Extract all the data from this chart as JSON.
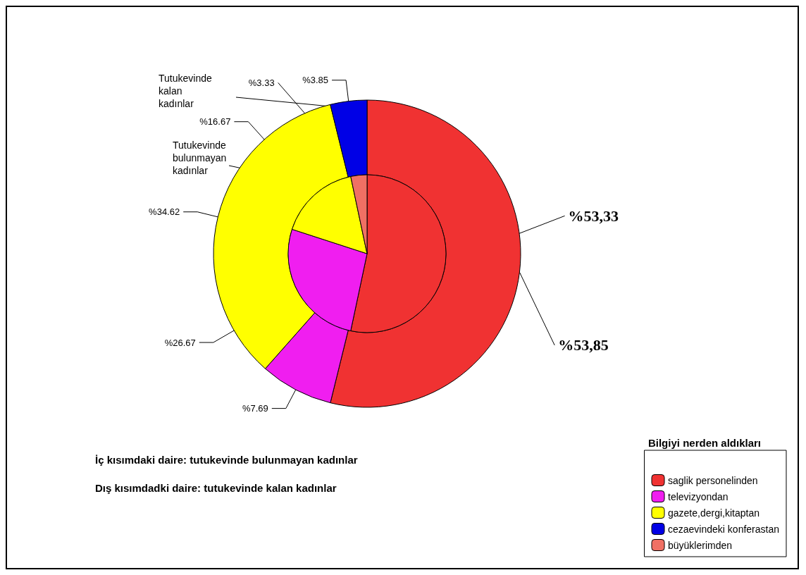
{
  "chart_data": {
    "type": "pie",
    "legend_title": "Bilgiyi nerden aldıkları",
    "legend": "bottom right",
    "categories": [
      "saglik personelinden",
      "televizyondan",
      "gazete,dergi,kitaptan",
      "cezaevindeki konferastan",
      "büyüklerimden"
    ],
    "colors": [
      "#f03232",
      "#f01ef0",
      "#ffff00",
      "#0000e6",
      "#f07064"
    ],
    "series": [
      {
        "name": "Tutukevinde kalan kadınlar",
        "values": [
          53.85,
          7.69,
          34.62,
          3.85,
          null
        ],
        "value_labels": [
          "%53,85",
          "%7.69",
          "%34.62",
          "%3.85",
          null
        ]
      },
      {
        "name": "Tutukevinde bulunmayan kadınlar",
        "values": [
          53.33,
          26.67,
          16.67,
          null,
          3.33
        ],
        "value_labels": [
          "%53,33",
          "%26.67",
          "%16.67",
          null,
          "%3.33"
        ]
      }
    ],
    "annotations": [
      "İç kısımdaki daire: tutukevinde bulunmayan kadınlar",
      "Dış kısımdadki daire: tutukevinde kalan kadınlar"
    ]
  }
}
